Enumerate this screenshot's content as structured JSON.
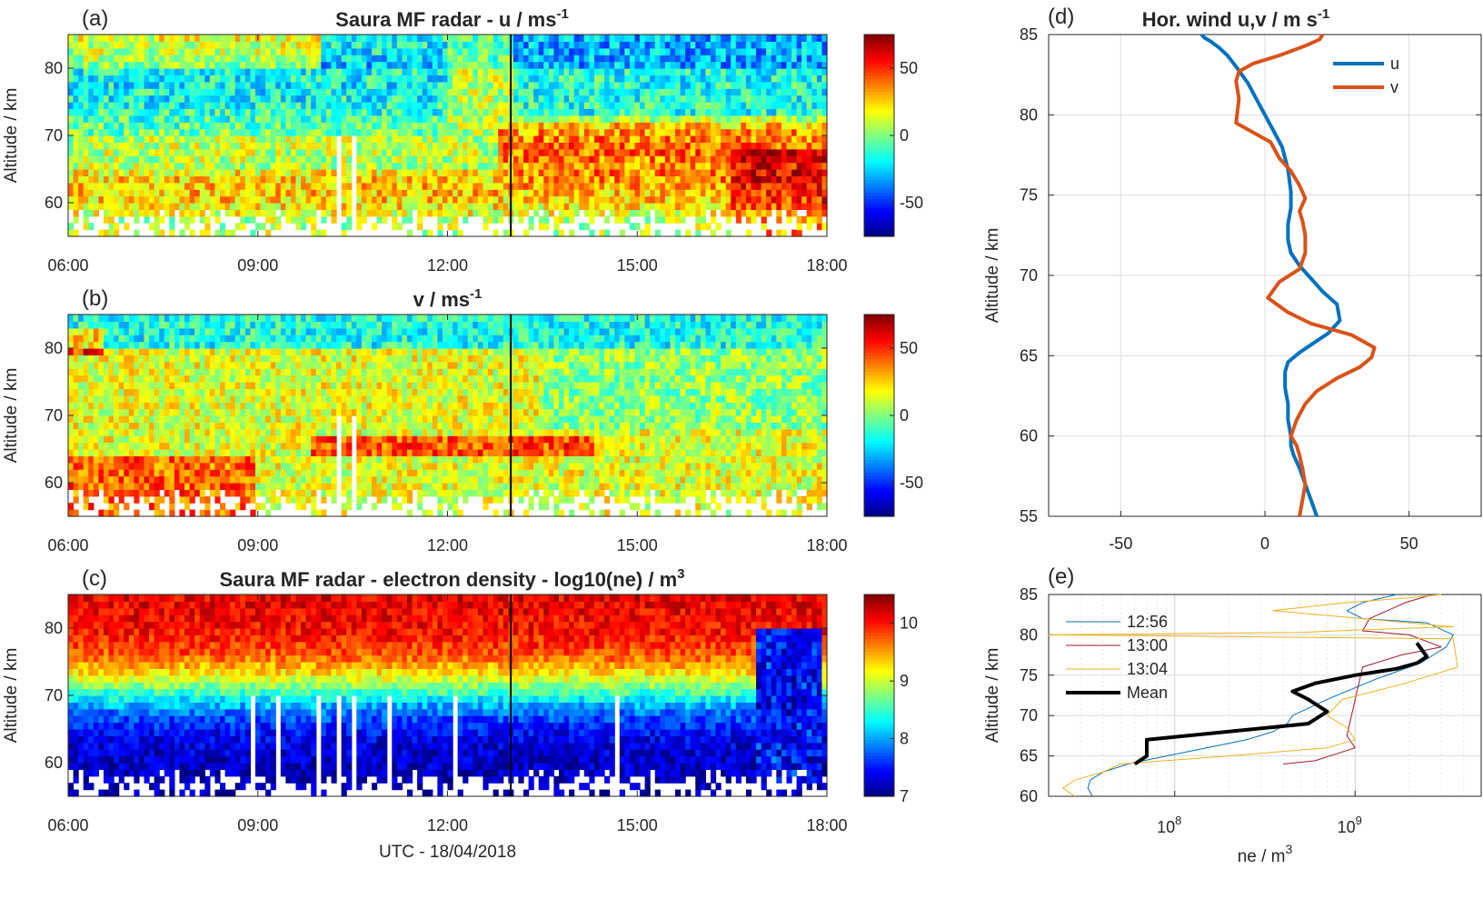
{
  "chart_data": [
    {
      "id": "a",
      "type": "heatmap",
      "panel_label": "(a)",
      "title": "Saura MF radar - u / ms",
      "title_sup": "-1",
      "ylabel": "Altitude / km",
      "xlabel": "",
      "xticks": [
        "06:00",
        "09:00",
        "12:00",
        "15:00",
        "18:00"
      ],
      "xlim_hours": [
        6,
        18
      ],
      "yticks": [
        60,
        70,
        80
      ],
      "ylim": [
        55,
        85
      ],
      "colorbar": {
        "ticks": [
          50,
          0,
          -50
        ],
        "range": [
          -75,
          75
        ],
        "colormap": "jet"
      },
      "marker_time": "13:00"
    },
    {
      "id": "b",
      "type": "heatmap",
      "panel_label": "(b)",
      "title": "v / ms",
      "title_sup": "-1",
      "ylabel": "Altitude / km",
      "xlabel": "",
      "xticks": [
        "06:00",
        "09:00",
        "12:00",
        "15:00",
        "18:00"
      ],
      "xlim_hours": [
        6,
        18
      ],
      "yticks": [
        60,
        70,
        80
      ],
      "ylim": [
        55,
        85
      ],
      "colorbar": {
        "ticks": [
          50,
          0,
          -50
        ],
        "range": [
          -75,
          75
        ],
        "colormap": "jet"
      },
      "marker_time": "13:00"
    },
    {
      "id": "c",
      "type": "heatmap",
      "panel_label": "(c)",
      "title": "Saura MF radar - electron density - log10(ne) / m",
      "title_sup": "3",
      "ylabel": "Altitude / km",
      "xlabel": "UTC - 18/04/2018",
      "xticks": [
        "06:00",
        "09:00",
        "12:00",
        "15:00",
        "18:00"
      ],
      "xlim_hours": [
        6,
        18
      ],
      "yticks": [
        60,
        70,
        80
      ],
      "ylim": [
        55,
        85
      ],
      "colorbar": {
        "ticks": [
          10,
          9,
          8,
          7
        ],
        "range": [
          7,
          10.5
        ],
        "colormap": "jet"
      },
      "marker_time": "13:00"
    },
    {
      "id": "d",
      "type": "line",
      "panel_label": "(d)",
      "title": "Hor. wind u,v / m s",
      "title_sup": "-1",
      "xlabel": "",
      "ylabel": "Altitude / km",
      "xlim": [
        -75,
        75
      ],
      "xticks": [
        -50,
        0,
        50
      ],
      "ylim": [
        55,
        85
      ],
      "yticks": [
        55,
        60,
        65,
        70,
        75,
        80,
        85
      ],
      "grid": true,
      "legend": "top-right",
      "series": [
        {
          "name": "u",
          "color": "#0072BD",
          "x": [
            18,
            16,
            14,
            12,
            10,
            9,
            9,
            8,
            8,
            7,
            7,
            8,
            12,
            17,
            22,
            26,
            25,
            20,
            16,
            12,
            9,
            8,
            8,
            9,
            9,
            8,
            6,
            3,
            0,
            -3,
            -6,
            -10,
            -13,
            -16,
            -19,
            -21,
            -22
          ],
          "y": [
            55,
            56,
            57,
            58,
            58.8,
            59.4,
            60,
            61,
            62,
            63,
            64,
            64.6,
            65.2,
            65.8,
            66.4,
            67.2,
            68.2,
            69,
            69.8,
            70.6,
            71.4,
            72.2,
            73.2,
            74.2,
            75.2,
            76.6,
            78,
            79,
            80,
            81,
            82,
            83,
            83.7,
            84.2,
            84.6,
            84.8,
            85
          ]
        },
        {
          "name": "v",
          "color": "#D95319",
          "x": [
            12,
            13,
            14,
            13,
            12,
            11,
            9,
            11,
            14,
            18,
            25,
            33,
            37,
            38,
            30,
            16,
            8,
            1,
            5,
            12,
            14,
            14,
            13,
            12,
            14,
            12,
            9,
            5,
            2,
            -10,
            -9,
            -10,
            -9,
            -4,
            5,
            14,
            19,
            20
          ],
          "y": [
            55,
            56,
            57,
            58,
            58.8,
            59.4,
            60,
            61,
            62,
            62.8,
            63.6,
            64.3,
            64.9,
            65.5,
            66.3,
            67,
            67.7,
            68.6,
            69.6,
            70.4,
            71.4,
            72.5,
            73.4,
            74,
            74.8,
            75.6,
            76.5,
            77.3,
            78.3,
            79.5,
            81,
            82.1,
            82.7,
            83.2,
            83.7,
            84.3,
            84.7,
            85
          ]
        }
      ]
    },
    {
      "id": "e",
      "type": "line",
      "panel_label": "(e)",
      "title": "",
      "xlabel": "ne / m",
      "xlabel_sup": "3",
      "ylabel": "Altitude / km",
      "xscale": "log",
      "xlim": [
        20000000,
        5000000000
      ],
      "xticks": [
        {
          "base": "10",
          "exp": "8",
          "value": 100000000
        },
        {
          "base": "10",
          "exp": "9",
          "value": 1000000000
        }
      ],
      "ylim": [
        60,
        85
      ],
      "yticks": [
        60,
        65,
        70,
        75,
        80,
        85
      ],
      "grid": true,
      "legend": "top-left",
      "series": [
        {
          "name": "12:56",
          "color": "#0072BD",
          "width": 1,
          "x": [
            35000000,
            33000000,
            34000000,
            40000000,
            55000000,
            90000000,
            150000000,
            250000000,
            350000000,
            420000000,
            450000000,
            700000000,
            1300000000,
            2300000000,
            3200000000,
            3500000000,
            2500000000,
            1100000000,
            900000000,
            1100000000,
            1700000000
          ],
          "y": [
            60,
            61,
            62,
            63,
            64,
            65,
            66,
            67,
            68,
            69,
            70,
            72,
            74.5,
            76.5,
            78.5,
            80,
            81.5,
            82,
            83,
            84,
            85
          ]
        },
        {
          "name": "13:00",
          "color": "#A2142F",
          "width": 1,
          "x": [
            400000000,
            600000000,
            850000000,
            1000000000,
            900000000,
            1100000000,
            1800000000,
            3000000000,
            2000000000,
            1100000000,
            1200000000,
            1900000000,
            2700000000
          ],
          "y": [
            64,
            64.4,
            65.5,
            66,
            67.5,
            76,
            77.5,
            78.5,
            80,
            80.5,
            82,
            84,
            85
          ]
        },
        {
          "name": "13:04",
          "color": "#EDB120",
          "width": 1,
          "x": [
            28000000,
            24000000,
            28000000,
            40000000,
            50000000,
            200000000,
            700000000,
            1000000000,
            900000000,
            700000000,
            850000000,
            1900000000,
            3700000000,
            3500000000,
            20000000,
            500000000,
            1000000000,
            3500000000,
            350000000,
            900000000,
            2000000000,
            3000000000
          ],
          "y": [
            60,
            61,
            62,
            63,
            64,
            65,
            66,
            67,
            68.5,
            70,
            72,
            74,
            76,
            79.5,
            80,
            80.3,
            80.6,
            81,
            83,
            84,
            84.6,
            85
          ]
        },
        {
          "name": "Mean",
          "color": "#000000",
          "width": 4,
          "x": [
            60000000,
            70000000,
            70000000,
            550000000,
            700000000,
            550000000,
            450000000,
            600000000,
            1000000000,
            1700000000,
            2200000000,
            2500000000,
            2200000000
          ],
          "y": [
            64,
            65,
            67,
            69,
            70.5,
            72,
            73,
            74,
            75,
            75.8,
            76.5,
            77.3,
            79
          ]
        }
      ]
    }
  ]
}
